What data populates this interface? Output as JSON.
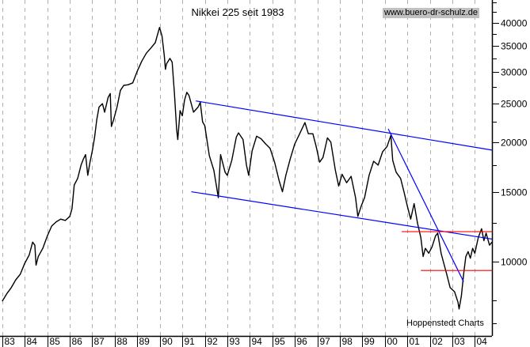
{
  "chart_data": {
    "type": "line",
    "title": "Nikkei 225 seit 1983",
    "source_label": "www.buero-dr-schulz.de",
    "credit": "Hoppenstedt Charts",
    "xlabel": "",
    "ylabel": "",
    "y_scale": "log",
    "xlim": [
      1982.9,
      2004.76
    ],
    "ylim": [
      6500,
      45600
    ],
    "grid": "vertical dashed at each year",
    "x_tick_labels": [
      {
        "year": 1983,
        "label": "83"
      },
      {
        "year": 1984,
        "label": "84"
      },
      {
        "year": 1985,
        "label": "85"
      },
      {
        "year": 1986,
        "label": "86"
      },
      {
        "year": 1987,
        "label": "87"
      },
      {
        "year": 1988,
        "label": "88"
      },
      {
        "year": 1989,
        "label": "89"
      },
      {
        "year": 1990,
        "label": "90"
      },
      {
        "year": 1991,
        "label": "91"
      },
      {
        "year": 1992,
        "label": "92"
      },
      {
        "year": 1993,
        "label": "93"
      },
      {
        "year": 1994,
        "label": "94"
      },
      {
        "year": 1995,
        "label": "95"
      },
      {
        "year": 1996,
        "label": "96"
      },
      {
        "year": 1997,
        "label": "97"
      },
      {
        "year": 1998,
        "label": "98"
      },
      {
        "year": 1999,
        "label": "99"
      },
      {
        "year": 2000,
        "label": "00"
      },
      {
        "year": 2001,
        "label": "01"
      },
      {
        "year": 2002,
        "label": "02"
      },
      {
        "year": 2003,
        "label": "03"
      },
      {
        "year": 2004,
        "label": "04"
      }
    ],
    "y_major_ticks": [
      {
        "value": 10000,
        "label": "10000"
      },
      {
        "value": 15000,
        "label": "15000"
      },
      {
        "value": 20000,
        "label": "20000"
      },
      {
        "value": 25000,
        "label": "25000"
      },
      {
        "value": 30000,
        "label": "30000"
      },
      {
        "value": 35000,
        "label": "35000"
      },
      {
        "value": 40000,
        "label": "40000"
      }
    ],
    "y_minor_ticks": [
      7000,
      8000,
      12500,
      17500,
      22500,
      27500,
      32500,
      37500,
      42500,
      45000
    ],
    "colors": {
      "series": "#000000",
      "trendlines": "#0000ff",
      "levels": "#ff0000",
      "grid": "#b0b0b0"
    },
    "series": [
      {
        "points": [
          [
            1983.0,
            7950
          ],
          [
            1983.2,
            8300
          ],
          [
            1983.4,
            8600
          ],
          [
            1983.6,
            9000
          ],
          [
            1983.8,
            9300
          ],
          [
            1984.0,
            9900
          ],
          [
            1984.2,
            10400
          ],
          [
            1984.35,
            11200
          ],
          [
            1984.45,
            11000
          ],
          [
            1984.5,
            9800
          ],
          [
            1984.6,
            10300
          ],
          [
            1984.8,
            10800
          ],
          [
            1985.0,
            11600
          ],
          [
            1985.2,
            12300
          ],
          [
            1985.4,
            12600
          ],
          [
            1985.6,
            12800
          ],
          [
            1985.8,
            12700
          ],
          [
            1986.0,
            13000
          ],
          [
            1986.1,
            13600
          ],
          [
            1986.2,
            15600
          ],
          [
            1986.35,
            16200
          ],
          [
            1986.5,
            17500
          ],
          [
            1986.6,
            18100
          ],
          [
            1986.7,
            18600
          ],
          [
            1986.8,
            16500
          ],
          [
            1986.9,
            17800
          ],
          [
            1987.0,
            19000
          ],
          [
            1987.1,
            20500
          ],
          [
            1987.2,
            22800
          ],
          [
            1987.3,
            24500
          ],
          [
            1987.45,
            25000
          ],
          [
            1987.55,
            23800
          ],
          [
            1987.7,
            25900
          ],
          [
            1987.8,
            26500
          ],
          [
            1987.85,
            21900
          ],
          [
            1987.95,
            22800
          ],
          [
            1988.1,
            24500
          ],
          [
            1988.25,
            27000
          ],
          [
            1988.4,
            27800
          ],
          [
            1988.6,
            27900
          ],
          [
            1988.8,
            28200
          ],
          [
            1989.0,
            30200
          ],
          [
            1989.2,
            32000
          ],
          [
            1989.4,
            33500
          ],
          [
            1989.6,
            34500
          ],
          [
            1989.8,
            35600
          ],
          [
            1989.99,
            38900
          ],
          [
            1990.1,
            37000
          ],
          [
            1990.2,
            33000
          ],
          [
            1990.25,
            30500
          ],
          [
            1990.3,
            31500
          ],
          [
            1990.45,
            32500
          ],
          [
            1990.55,
            31800
          ],
          [
            1990.65,
            26500
          ],
          [
            1990.75,
            21500
          ],
          [
            1990.8,
            20300
          ],
          [
            1990.9,
            24000
          ],
          [
            1991.0,
            23300
          ],
          [
            1991.1,
            25500
          ],
          [
            1991.2,
            26700
          ],
          [
            1991.3,
            26200
          ],
          [
            1991.5,
            23800
          ],
          [
            1991.7,
            24500
          ],
          [
            1991.8,
            25200
          ],
          [
            1991.9,
            22500
          ],
          [
            1992.0,
            22000
          ],
          [
            1992.2,
            18500
          ],
          [
            1992.4,
            17000
          ],
          [
            1992.6,
            14500
          ],
          [
            1992.65,
            16500
          ],
          [
            1992.7,
            18600
          ],
          [
            1992.9,
            16800
          ],
          [
            1993.0,
            16500
          ],
          [
            1993.2,
            18000
          ],
          [
            1993.4,
            20600
          ],
          [
            1993.5,
            21100
          ],
          [
            1993.7,
            20300
          ],
          [
            1993.85,
            17500
          ],
          [
            1993.95,
            16500
          ],
          [
            1994.1,
            19000
          ],
          [
            1994.3,
            20700
          ],
          [
            1994.5,
            20400
          ],
          [
            1994.7,
            19800
          ],
          [
            1994.9,
            19300
          ],
          [
            1995.1,
            17800
          ],
          [
            1995.3,
            16000
          ],
          [
            1995.45,
            15000
          ],
          [
            1995.6,
            16500
          ],
          [
            1995.8,
            18200
          ],
          [
            1996.0,
            19800
          ],
          [
            1996.2,
            20900
          ],
          [
            1996.45,
            22400
          ],
          [
            1996.6,
            21000
          ],
          [
            1996.8,
            21000
          ],
          [
            1996.95,
            19500
          ],
          [
            1997.1,
            17800
          ],
          [
            1997.25,
            18300
          ],
          [
            1997.45,
            20500
          ],
          [
            1997.6,
            20000
          ],
          [
            1997.8,
            17000
          ],
          [
            1997.95,
            15500
          ],
          [
            1998.1,
            16600
          ],
          [
            1998.3,
            15800
          ],
          [
            1998.5,
            16400
          ],
          [
            1998.7,
            14500
          ],
          [
            1998.8,
            13000
          ],
          [
            1998.95,
            13800
          ],
          [
            1999.1,
            14500
          ],
          [
            1999.3,
            16500
          ],
          [
            1999.5,
            17900
          ],
          [
            1999.7,
            17500
          ],
          [
            1999.9,
            18900
          ],
          [
            2000.1,
            19500
          ],
          [
            2000.27,
            20800
          ],
          [
            2000.35,
            18000
          ],
          [
            2000.5,
            16800
          ],
          [
            2000.7,
            16200
          ],
          [
            2000.85,
            15000
          ],
          [
            2001.0,
            13800
          ],
          [
            2001.15,
            12800
          ],
          [
            2001.3,
            14000
          ],
          [
            2001.45,
            12500
          ],
          [
            2001.6,
            11500
          ],
          [
            2001.7,
            10300
          ],
          [
            2001.8,
            10800
          ],
          [
            2001.95,
            10500
          ],
          [
            2002.1,
            10900
          ],
          [
            2002.25,
            11600
          ],
          [
            2002.35,
            11800
          ],
          [
            2002.5,
            10500
          ],
          [
            2002.6,
            10000
          ],
          [
            2002.75,
            9300
          ],
          [
            2002.9,
            8600
          ],
          [
            2003.1,
            8400
          ],
          [
            2003.25,
            7900
          ],
          [
            2003.3,
            7600
          ],
          [
            2003.4,
            8200
          ],
          [
            2003.5,
            9300
          ],
          [
            2003.6,
            10300
          ],
          [
            2003.7,
            10600
          ],
          [
            2003.8,
            10200
          ],
          [
            2003.9,
            10800
          ],
          [
            2004.0,
            10500
          ],
          [
            2004.15,
            11500
          ],
          [
            2004.3,
            12100
          ],
          [
            2004.4,
            11300
          ],
          [
            2004.5,
            11800
          ],
          [
            2004.65,
            11000
          ],
          [
            2004.76,
            11200
          ]
        ]
      }
    ],
    "trendlines": [
      {
        "kind": "upper-channel",
        "color": "#0000ff",
        "from": [
          1991.6,
          25400
        ],
        "to": [
          2004.76,
          19100
        ]
      },
      {
        "kind": "lower-channel",
        "color": "#0000ff",
        "from": [
          1991.4,
          15000
        ],
        "to": [
          2004.76,
          11400
        ]
      },
      {
        "kind": "downtrend",
        "color": "#0000ff",
        "from": [
          2000.15,
          21600
        ],
        "to": [
          2003.5,
          8900
        ]
      },
      {
        "kind": "resistance",
        "color": "#ff0000",
        "from": [
          2000.75,
          11900
        ],
        "to": [
          2004.76,
          11900
        ]
      },
      {
        "kind": "support",
        "color": "#ff0000",
        "from": [
          2001.6,
          9500
        ],
        "to": [
          2004.76,
          9500
        ]
      }
    ]
  }
}
